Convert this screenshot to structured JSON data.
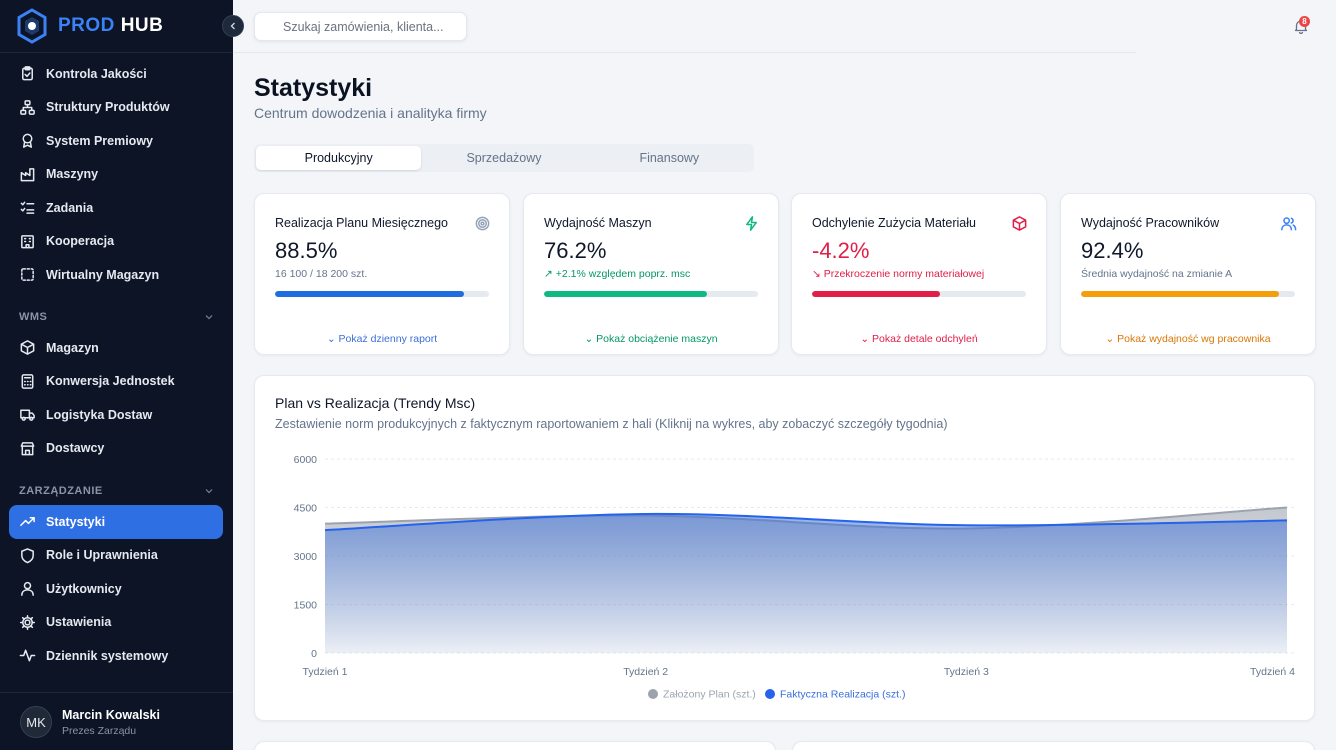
{
  "brand": {
    "part1": "PROD",
    "part2": "HUB"
  },
  "sidebar": {
    "main_items": [
      {
        "label": "Kontrola Jakości",
        "icon": "clipboard-check-icon"
      },
      {
        "label": "Struktury Produktów",
        "icon": "hierarchy-icon"
      },
      {
        "label": "System Premiowy",
        "icon": "award-icon"
      },
      {
        "label": "Maszyny",
        "icon": "factory-icon"
      },
      {
        "label": "Zadania",
        "icon": "checklist-icon"
      },
      {
        "label": "Kooperacja",
        "icon": "building-icon"
      },
      {
        "label": "Wirtualny Magazyn",
        "icon": "dashed-box-icon"
      }
    ],
    "wms_title": "WMS",
    "wms_items": [
      {
        "label": "Magazyn",
        "icon": "package-icon"
      },
      {
        "label": "Konwersja Jednostek",
        "icon": "calculator-icon"
      },
      {
        "label": "Logistyka Dostaw",
        "icon": "truck-icon"
      },
      {
        "label": "Dostawcy",
        "icon": "store-icon"
      }
    ],
    "mgmt_title": "ZARZĄDZANIE",
    "mgmt_items": [
      {
        "label": "Statystyki",
        "icon": "trending-up-icon",
        "active": true
      },
      {
        "label": "Role i Uprawnienia",
        "icon": "shield-icon"
      },
      {
        "label": "Użytkownicy",
        "icon": "user-icon"
      },
      {
        "label": "Ustawienia",
        "icon": "gear-icon"
      },
      {
        "label": "Dziennik systemowy",
        "icon": "activity-icon"
      }
    ],
    "user": {
      "initials": "MK",
      "name": "Marcin Kowalski",
      "role": "Prezes Zarządu"
    }
  },
  "topbar": {
    "search_placeholder": "Szukaj zamówienia, klienta...",
    "notification_count": "8"
  },
  "page": {
    "title": "Statystyki",
    "subtitle": "Centrum dowodzenia i analityka firmy"
  },
  "tabs": [
    {
      "label": "Produkcyjny",
      "active": true
    },
    {
      "label": "Sprzedażowy",
      "active": false
    },
    {
      "label": "Finansowy",
      "active": false
    }
  ],
  "kpis": [
    {
      "title": "Realizacja Planu Miesięcznego",
      "value": "88.5%",
      "sub": "16 100 / 18 200 szt.",
      "progress": 0.885,
      "color": "#1e6ee0",
      "value_color": "#0f172a",
      "sub_color": "#64748b",
      "link": "Pokaż dzienny raport",
      "link_color": "#3b6fd8",
      "icon": "target-icon"
    },
    {
      "title": "Wydajność Maszyn",
      "value": "76.2%",
      "sub": "+2.1% względem poprz. msc",
      "progress": 0.762,
      "color": "#10b981",
      "value_color": "#0f172a",
      "sub_color": "#059669",
      "link": "Pokaż obciążenie maszyn",
      "link_color": "#059669",
      "icon": "lightning-icon"
    },
    {
      "title": "Odchylenie Zużycia Materiału",
      "value": "-4.2%",
      "sub": "Przekroczenie normy materiałowej",
      "progress": 0.6,
      "color": "#e11d48",
      "value_color": "#e11d48",
      "sub_color": "#e11d48",
      "link": "Pokaż detale odchyleń",
      "link_color": "#e11d48",
      "icon": "cube-icon"
    },
    {
      "title": "Wydajność Pracowników",
      "value": "92.4%",
      "sub": "Średnia wydajność na zmianie A",
      "progress": 0.924,
      "color": "#f59e0b",
      "value_color": "#0f172a",
      "sub_color": "#64748b",
      "link": "Pokaż wydajność wg pracownika",
      "link_color": "#d97706",
      "icon": "users-icon"
    }
  ],
  "chart": {
    "title": "Plan vs Realizacja (Trendy Msc)",
    "subtitle": "Zestawienie norm produkcyjnych z faktycznym raportowaniem z hali (Kliknij na wykres, aby zobaczyć szczegóły tygodnia)"
  },
  "chart_data": {
    "type": "area",
    "x": [
      "Tydzień 1",
      "Tydzień 2",
      "Tydzień 3",
      "Tydzień 4"
    ],
    "series": [
      {
        "name": "Założony Plan (szt.)",
        "values": [
          4000,
          4250,
          3850,
          4500
        ],
        "color": "#9ca3af"
      },
      {
        "name": "Faktyczna Realizacja (szt.)",
        "values": [
          3800,
          4300,
          3950,
          4100
        ],
        "color": "#2563eb"
      }
    ],
    "yticks": [
      "0",
      "1500",
      "3000",
      "4500",
      "6000"
    ],
    "ylim": [
      0,
      6000
    ],
    "grid": true,
    "legend": "bottom"
  }
}
